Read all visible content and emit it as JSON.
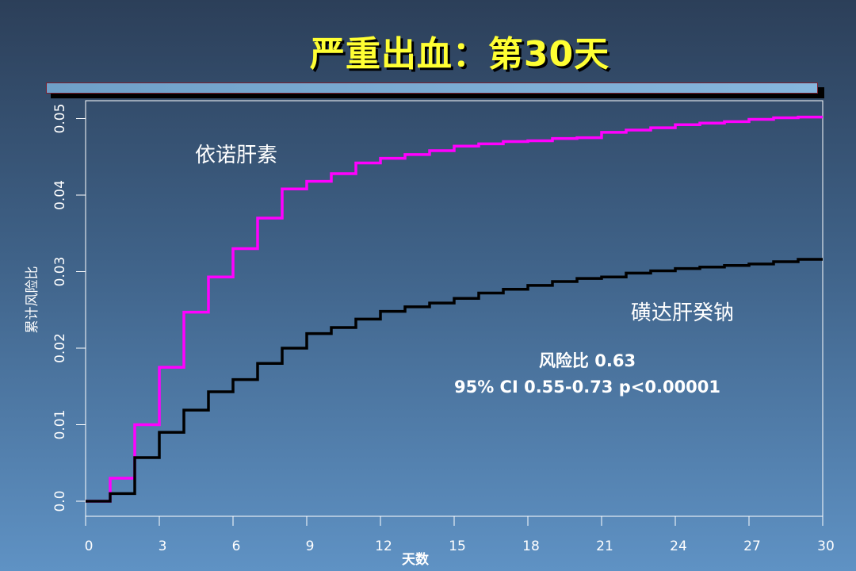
{
  "slide": {
    "title": "严重出血：第30天"
  },
  "chart_data": {
    "type": "line",
    "title": "严重出血：第30天",
    "xlabel": "天数",
    "ylabel": "累计风险比",
    "xlim": [
      0,
      30
    ],
    "ylim": [
      0,
      0.05
    ],
    "x_ticks": [
      "0",
      "3",
      "6",
      "9",
      "12",
      "15",
      "18",
      "21",
      "24",
      "27",
      "30"
    ],
    "y_ticks": [
      "0.0",
      "0.01",
      "0.02",
      "0.03",
      "0.04",
      "0.05"
    ],
    "x_tick_values": [
      0,
      3,
      6,
      9,
      12,
      15,
      18,
      21,
      24,
      27,
      30
    ],
    "y_tick_values": [
      0,
      0.01,
      0.02,
      0.03,
      0.04,
      0.05
    ],
    "grid": false,
    "step": true,
    "series": [
      {
        "name": "依诺肝素",
        "color": "#ff00ff",
        "x": [
          0,
          1,
          2,
          3,
          4,
          5,
          6,
          7,
          8,
          9,
          10,
          11,
          12,
          13,
          14,
          15,
          16,
          17,
          18,
          19,
          20,
          21,
          22,
          23,
          24,
          25,
          26,
          27,
          28,
          29,
          30
        ],
        "y": [
          0.0,
          0.003,
          0.01,
          0.0175,
          0.0247,
          0.0293,
          0.033,
          0.037,
          0.0408,
          0.0418,
          0.0428,
          0.0442,
          0.0448,
          0.0453,
          0.0458,
          0.0464,
          0.0467,
          0.047,
          0.0471,
          0.0474,
          0.0475,
          0.0482,
          0.0485,
          0.0488,
          0.0492,
          0.0494,
          0.0496,
          0.0499,
          0.0501,
          0.0502,
          0.0502
        ]
      },
      {
        "name": "磺达肝癸钠",
        "color": "#000000",
        "x": [
          0,
          1,
          2,
          3,
          4,
          5,
          6,
          7,
          8,
          9,
          10,
          11,
          12,
          13,
          14,
          15,
          16,
          17,
          18,
          19,
          20,
          21,
          22,
          23,
          24,
          25,
          26,
          27,
          28,
          29,
          30
        ],
        "y": [
          0.0,
          0.001,
          0.0057,
          0.009,
          0.0119,
          0.0143,
          0.0159,
          0.018,
          0.02,
          0.0219,
          0.0227,
          0.0238,
          0.0248,
          0.0254,
          0.0259,
          0.0265,
          0.0272,
          0.0277,
          0.0282,
          0.0287,
          0.0291,
          0.0293,
          0.0298,
          0.0301,
          0.0304,
          0.0306,
          0.0308,
          0.031,
          0.0313,
          0.0316,
          0.0316
        ]
      }
    ],
    "annotations": {
      "hr": "风险比 0.63",
      "ci": "95% CI 0.55-0.73  p<0.00001"
    }
  }
}
